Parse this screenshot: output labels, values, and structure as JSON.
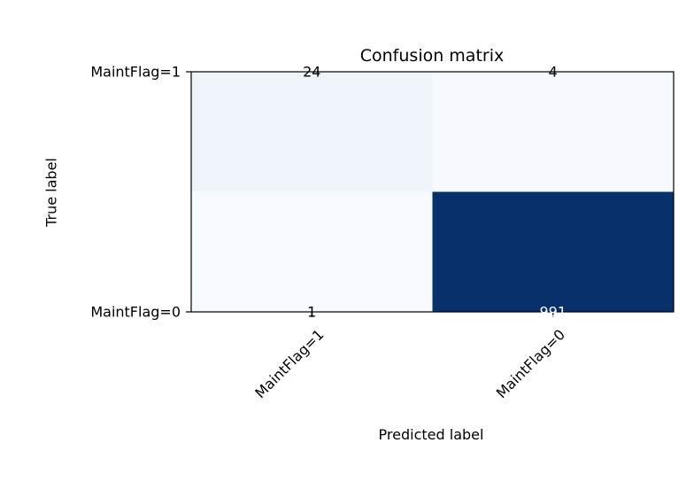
{
  "chart_data": {
    "type": "heatmap",
    "title": "Confusion matrix",
    "xlabel": "Predicted label",
    "ylabel": "True label",
    "x_categories": [
      "MaintFlag=1",
      "MaintFlag=0"
    ],
    "y_categories": [
      "MaintFlag=1",
      "MaintFlag=0"
    ],
    "matrix": [
      [
        24,
        4
      ],
      [
        1,
        991
      ]
    ],
    "colormap": "Blues",
    "color_range": [
      1,
      991
    ],
    "colors": {
      "low": "#f7fbff",
      "high": "#08306b",
      "text_dark": "#000000",
      "text_light": "#ffffff"
    }
  }
}
